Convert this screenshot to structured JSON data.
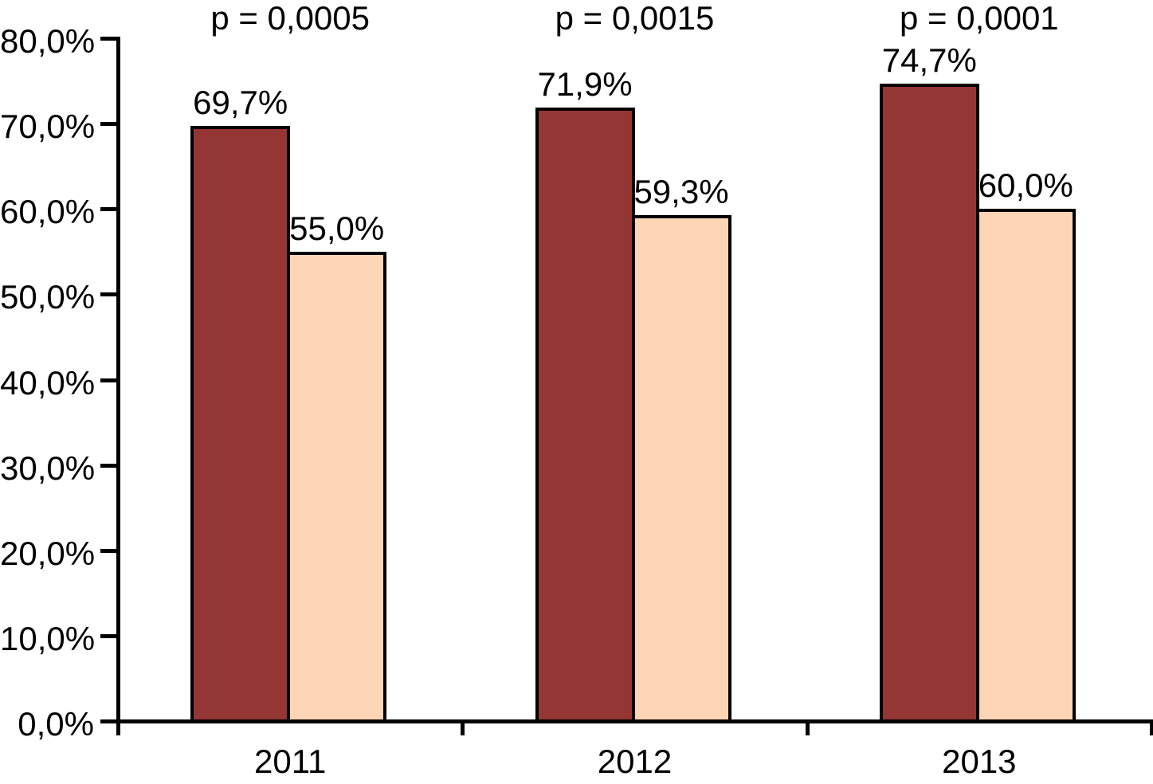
{
  "chart_data": {
    "type": "bar",
    "title": "",
    "xlabel": "",
    "ylabel": "",
    "categories": [
      "2011",
      "2012",
      "2013"
    ],
    "series": [
      {
        "name": "series-1-dark-red",
        "color": "#943634",
        "values": [
          69.7,
          71.9,
          74.7
        ],
        "value_labels": [
          "69,7%",
          "71,9%",
          "74,7%"
        ]
      },
      {
        "name": "series-2-peach",
        "color": "#FCD5B4",
        "values": [
          55.0,
          59.3,
          60.0
        ],
        "value_labels": [
          "55,0%",
          "59,3%",
          "60,0%"
        ]
      }
    ],
    "annotations": [
      {
        "category": "2011",
        "text": "p = 0,0005"
      },
      {
        "category": "2012",
        "text": "p = 0,0015"
      },
      {
        "category": "2013",
        "text": "p = 0,0001"
      }
    ],
    "y_axis": {
      "min": 0,
      "max": 80,
      "step": 10,
      "tick_labels": [
        "0,0%",
        "10,0%",
        "20,0%",
        "30,0%",
        "40,0%",
        "50,0%",
        "60,0%",
        "70,0%",
        "80,0%"
      ]
    },
    "x_axis": {
      "tick_labels": [
        "2011",
        "2012",
        "2013"
      ]
    },
    "grid": false,
    "legend": false,
    "colors": {
      "axis": "#000000",
      "bar_border": "#000000",
      "text": "#000000",
      "background": "#FFFFFF"
    }
  }
}
